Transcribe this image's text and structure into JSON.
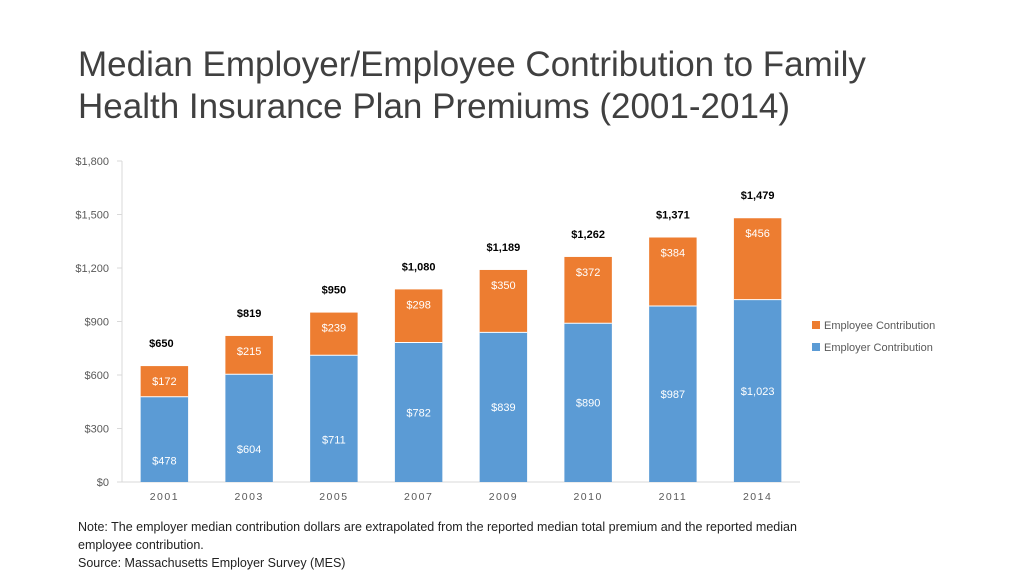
{
  "slide": {
    "title_line1": "Median Employer/Employee Contribution to Family",
    "title_line2": "Health Insurance Plan Premiums (2001-2014)",
    "note_line1": "Note: The employer median contribution dollars are extrapolated from the reported median total premium and the reported median",
    "note_line2": "employee contribution.",
    "source": "Source: Massachusetts Employer Survey (MES)"
  },
  "chart_data": {
    "type": "bar",
    "stacked": true,
    "categories": [
      "2001",
      "2003",
      "2005",
      "2007",
      "2009",
      "2010",
      "2011",
      "2014"
    ],
    "series": [
      {
        "name": "Employer Contribution",
        "color": "#5b9bd5",
        "values": [
          478,
          604,
          711,
          782,
          839,
          890,
          987,
          1023
        ],
        "labels": [
          "$478",
          "$604",
          "$711",
          "$782",
          "$839",
          "$890",
          "$987",
          "$1,023"
        ]
      },
      {
        "name": "Employee Contribution",
        "color": "#ed7d31",
        "values": [
          172,
          215,
          239,
          298,
          350,
          372,
          384,
          456
        ],
        "labels": [
          "$172",
          "$215",
          "$239",
          "$298",
          "$350",
          "$372",
          "$384",
          "$456"
        ]
      }
    ],
    "totals": [
      "$650",
      "$819",
      "$950",
      "$1,080",
      "$1,189",
      "$1,262",
      "$1,371",
      "$1,479"
    ],
    "ylim": [
      0,
      1800
    ],
    "yticks": [
      0,
      300,
      600,
      900,
      1200,
      1500,
      1800
    ],
    "ytick_labels": [
      "$0",
      "$300",
      "$600",
      "$900",
      "$1,200",
      "$1,500",
      "$1,800"
    ],
    "legend_order": [
      "Employee Contribution",
      "Employer Contribution"
    ],
    "legend_position": "right",
    "grid": false
  }
}
